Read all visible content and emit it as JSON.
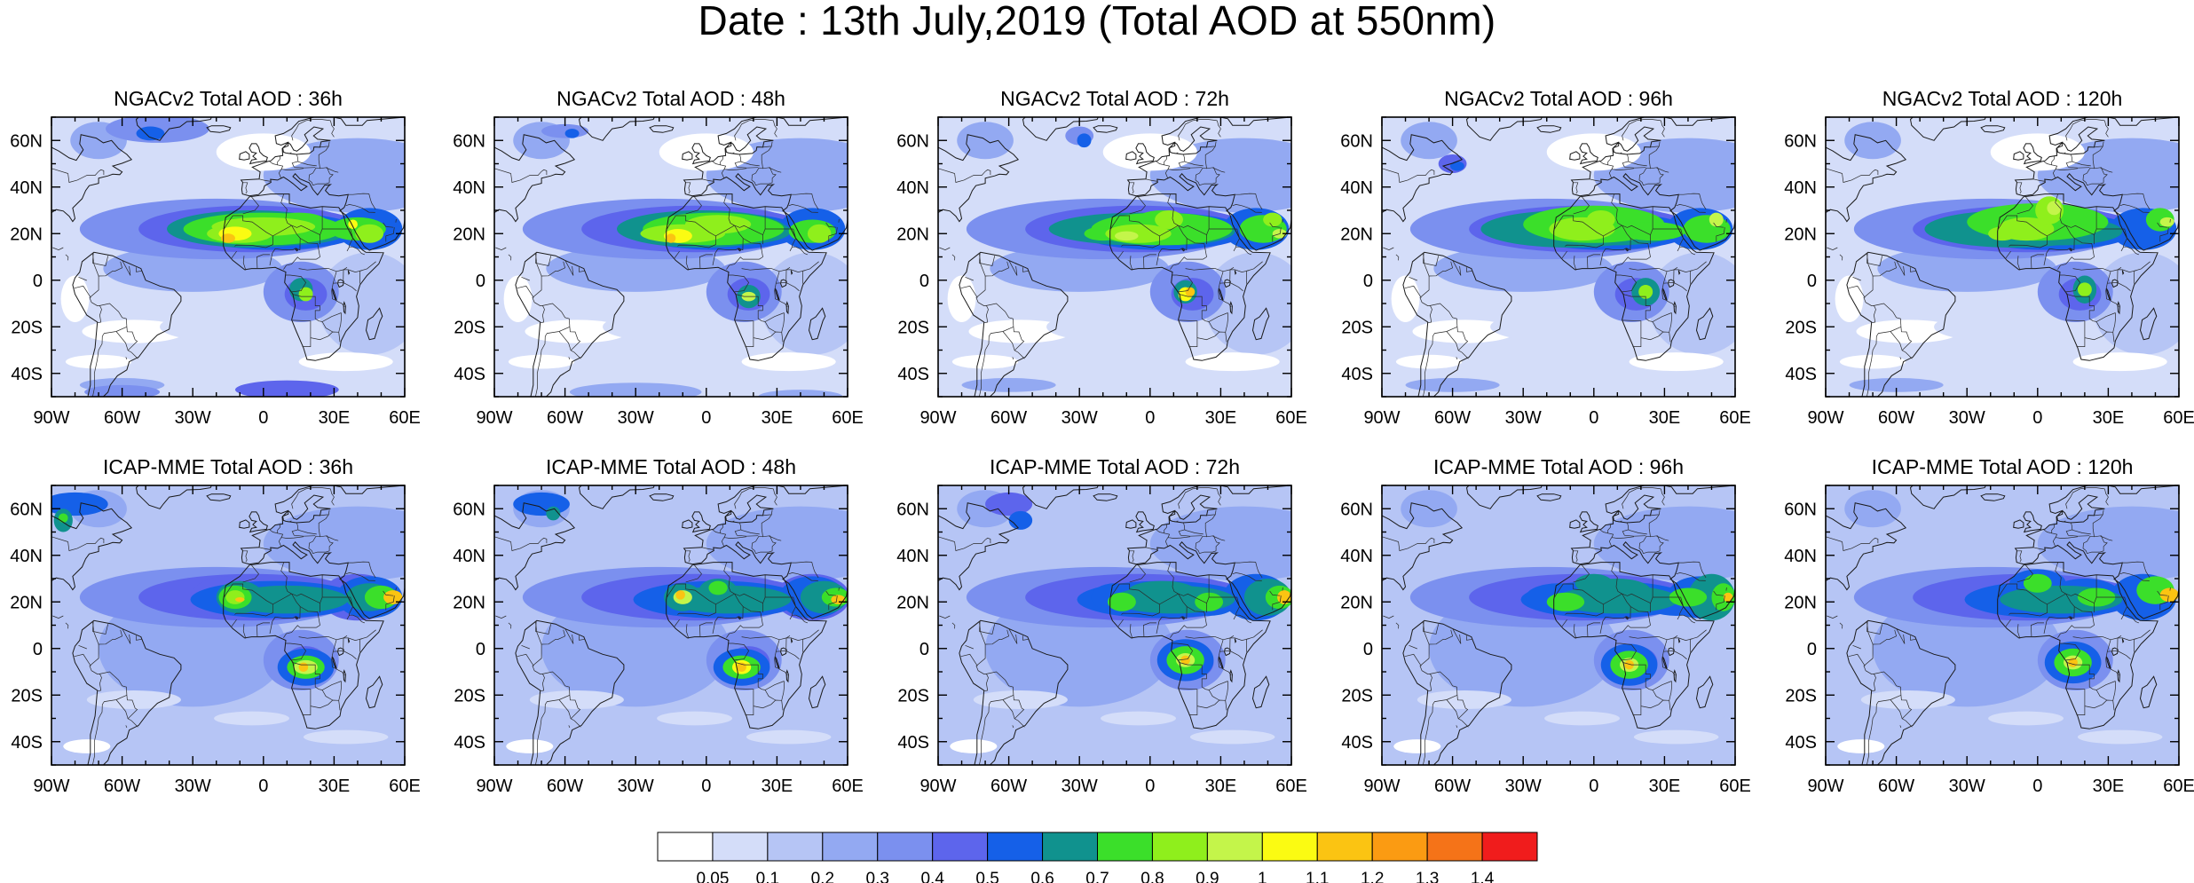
{
  "title": "Date : 13th July,2019 (Total AOD at 550nm)",
  "panels": [
    {
      "title": "NGACv2 Total AOD : 36h",
      "model": "NGACv2",
      "lead": "36h",
      "row": 0,
      "col": 0
    },
    {
      "title": "NGACv2 Total AOD : 48h",
      "model": "NGACv2",
      "lead": "48h",
      "row": 0,
      "col": 1
    },
    {
      "title": "NGACv2 Total AOD : 72h",
      "model": "NGACv2",
      "lead": "72h",
      "row": 0,
      "col": 2
    },
    {
      "title": "NGACv2 Total AOD : 96h",
      "model": "NGACv2",
      "lead": "96h",
      "row": 0,
      "col": 3
    },
    {
      "title": "NGACv2 Total AOD : 120h",
      "model": "NGACv2",
      "lead": "120h",
      "row": 0,
      "col": 4
    },
    {
      "title": "ICAP-MME Total AOD : 36h",
      "model": "ICAP-MME",
      "lead": "36h",
      "row": 1,
      "col": 0
    },
    {
      "title": "ICAP-MME Total AOD : 48h",
      "model": "ICAP-MME",
      "lead": "48h",
      "row": 1,
      "col": 1
    },
    {
      "title": "ICAP-MME Total AOD : 72h",
      "model": "ICAP-MME",
      "lead": "72h",
      "row": 1,
      "col": 2
    },
    {
      "title": "ICAP-MME Total AOD : 96h",
      "model": "ICAP-MME",
      "lead": "96h",
      "row": 1,
      "col": 3
    },
    {
      "title": "ICAP-MME Total AOD : 120h",
      "model": "ICAP-MME",
      "lead": "120h",
      "row": 1,
      "col": 4
    }
  ],
  "map_extent": {
    "lon": [
      -90,
      60
    ],
    "lat": [
      -50,
      70
    ]
  },
  "lon_ticks": [
    {
      "value": -90,
      "label": "90W"
    },
    {
      "value": -60,
      "label": "60W"
    },
    {
      "value": -30,
      "label": "30W"
    },
    {
      "value": 0,
      "label": "0"
    },
    {
      "value": 30,
      "label": "30E"
    },
    {
      "value": 60,
      "label": "60E"
    }
  ],
  "lat_ticks": [
    {
      "value": 60,
      "label": "60N"
    },
    {
      "value": 40,
      "label": "40N"
    },
    {
      "value": 20,
      "label": "20N"
    },
    {
      "value": 0,
      "label": "0"
    },
    {
      "value": -20,
      "label": "20S"
    },
    {
      "value": -40,
      "label": "40S"
    }
  ],
  "colorbar": {
    "levels": [
      "0.05",
      "0.1",
      "0.2",
      "0.3",
      "0.4",
      "0.5",
      "0.6",
      "0.7",
      "0.8",
      "0.9",
      "1",
      "1.1",
      "1.2",
      "1.3",
      "1.4"
    ],
    "colors": [
      "#ffffff",
      "#d4ddf9",
      "#b6c5f5",
      "#93a9f2",
      "#7b90ef",
      "#5d65ec",
      "#1560e8",
      "#10928e",
      "#3bdf2a",
      "#8fef1c",
      "#c4f54a",
      "#fbfb12",
      "#fbc412",
      "#fb9b12",
      "#f57318",
      "#f01c1c"
    ]
  }
}
